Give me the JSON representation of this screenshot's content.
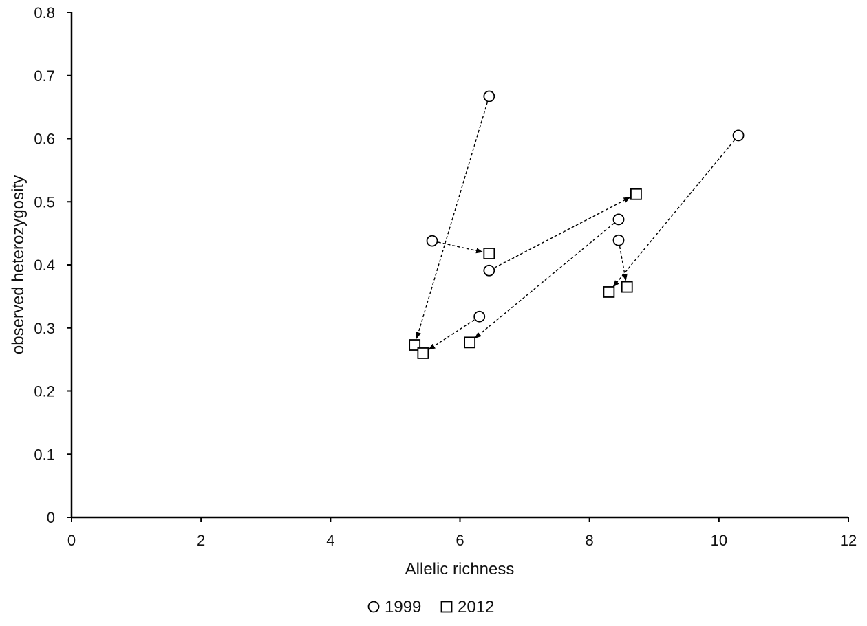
{
  "chart_data": {
    "type": "scatter",
    "xlabel": "Allelic richness",
    "ylabel": "observed heterozygosity",
    "xlim": [
      0,
      12
    ],
    "ylim": [
      0,
      0.8
    ],
    "x_ticks": [
      0,
      2,
      4,
      6,
      8,
      10,
      12
    ],
    "y_ticks": [
      0,
      0.1,
      0.2,
      0.3,
      0.4,
      0.5,
      0.6,
      0.7,
      0.8
    ],
    "x_tick_labels": [
      "0",
      "2",
      "4",
      "6",
      "8",
      "10",
      "12"
    ],
    "y_tick_labels": [
      "0",
      "0.1",
      "0.2",
      "0.3",
      "0.4",
      "0.5",
      "0.6",
      "0.7",
      "0.8"
    ],
    "grid": false,
    "legend_position": "bottom-center",
    "series": [
      {
        "name": "1999",
        "marker": "circle",
        "points": [
          {
            "x": 6.45,
            "y": 0.667
          },
          {
            "x": 5.57,
            "y": 0.438
          },
          {
            "x": 6.45,
            "y": 0.391
          },
          {
            "x": 6.3,
            "y": 0.318
          },
          {
            "x": 8.45,
            "y": 0.472
          },
          {
            "x": 8.45,
            "y": 0.439
          },
          {
            "x": 10.3,
            "y": 0.605
          }
        ]
      },
      {
        "name": "2012",
        "marker": "square",
        "points": [
          {
            "x": 5.3,
            "y": 0.273
          },
          {
            "x": 5.43,
            "y": 0.26
          },
          {
            "x": 6.15,
            "y": 0.277
          },
          {
            "x": 6.45,
            "y": 0.418
          },
          {
            "x": 8.72,
            "y": 0.512
          },
          {
            "x": 8.3,
            "y": 0.357
          },
          {
            "x": 8.58,
            "y": 0.365
          }
        ]
      }
    ],
    "arrows": [
      {
        "from": [
          6.45,
          0.667
        ],
        "to": [
          5.3,
          0.273
        ]
      },
      {
        "from": [
          5.57,
          0.438
        ],
        "to": [
          6.45,
          0.418
        ]
      },
      {
        "from": [
          6.45,
          0.391
        ],
        "to": [
          8.72,
          0.512
        ]
      },
      {
        "from": [
          6.3,
          0.318
        ],
        "to": [
          5.43,
          0.26
        ]
      },
      {
        "from": [
          8.45,
          0.472
        ],
        "to": [
          6.15,
          0.277
        ]
      },
      {
        "from": [
          8.45,
          0.439
        ],
        "to": [
          8.58,
          0.365
        ]
      },
      {
        "from": [
          10.3,
          0.605
        ],
        "to": [
          8.3,
          0.357
        ]
      }
    ],
    "colors": {
      "marker_stroke": "#000000",
      "marker_fill": "#ffffff",
      "arrow": "#000000"
    }
  }
}
